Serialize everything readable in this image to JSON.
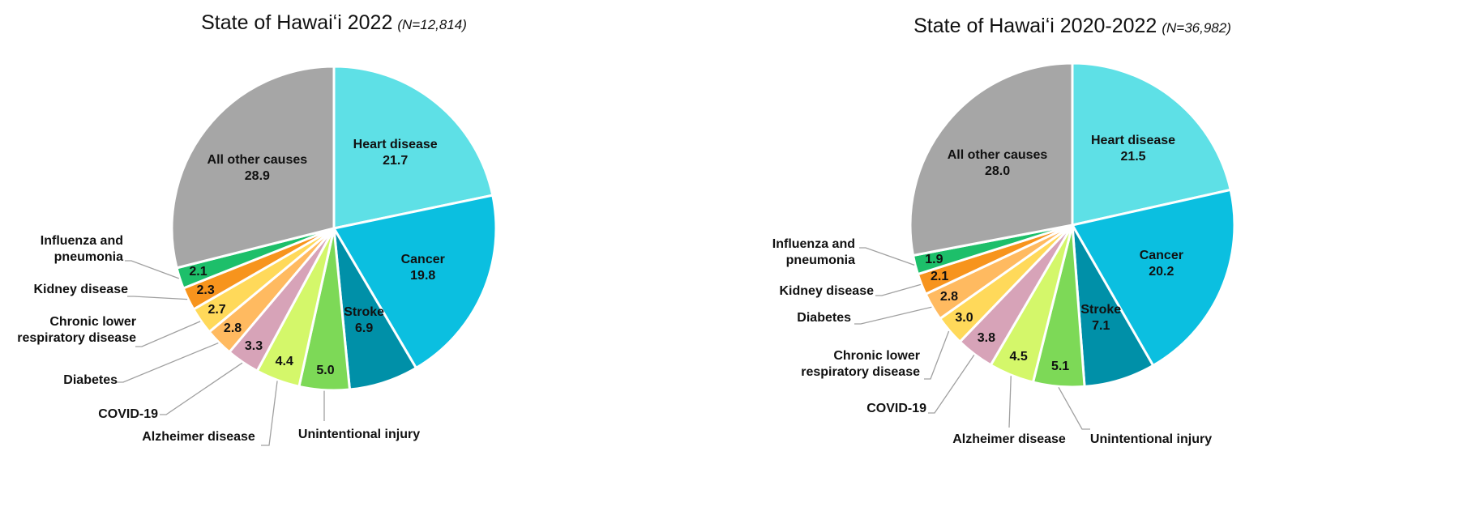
{
  "chart_data": [
    {
      "type": "pie",
      "title": "State of Hawaiʻi 2022",
      "subtitle": "(N=12,814)",
      "categories": [
        "Heart disease",
        "Cancer",
        "Stroke",
        "Unintentional injury",
        "Alzheimer disease",
        "COVID-19",
        "Diabetes",
        "Chronic lower respiratory disease",
        "Kidney disease",
        "Influenza and pneumonia",
        "All other causes"
      ],
      "values": [
        21.7,
        19.8,
        6.9,
        5.0,
        4.4,
        3.3,
        2.8,
        2.7,
        2.3,
        2.1,
        28.9
      ],
      "value_labels": [
        "21.7",
        "19.8",
        "6.9",
        "5.0",
        "4.4",
        "3.3",
        "2.8",
        "2.7",
        "2.3",
        "2.1",
        "28.9"
      ],
      "colors": [
        "#5ee0e6",
        "#0bbfe0",
        "#0090a8",
        "#7dd957",
        "#d4f76a",
        "#d7a3b8",
        "#ffba60",
        "#ffd95a",
        "#f7941d",
        "#1dbf6a",
        "#a6a6a6"
      ]
    },
    {
      "type": "pie",
      "title": "State of Hawaiʻi 2020-2022",
      "subtitle": "(N=36,982)",
      "categories": [
        "Heart disease",
        "Cancer",
        "Stroke",
        "Unintentional injury",
        "Alzheimer disease",
        "COVID-19",
        "Chronic lower respiratory disease",
        "Diabetes",
        "Kidney disease",
        "Influenza and pneumonia",
        "All other causes"
      ],
      "values": [
        21.5,
        20.2,
        7.1,
        5.1,
        4.5,
        3.8,
        3.0,
        2.8,
        2.1,
        1.9,
        28.0
      ],
      "value_labels": [
        "21.5",
        "20.2",
        "7.1",
        "5.1",
        "4.5",
        "3.8",
        "3.0",
        "2.8",
        "2.1",
        "1.9",
        "28.0"
      ],
      "colors": [
        "#5ee0e6",
        "#0bbfe0",
        "#0090a8",
        "#7dd957",
        "#d4f76a",
        "#d7a3b8",
        "#ffd95a",
        "#ffba60",
        "#f7941d",
        "#1dbf6a",
        "#a6a6a6"
      ]
    }
  ]
}
